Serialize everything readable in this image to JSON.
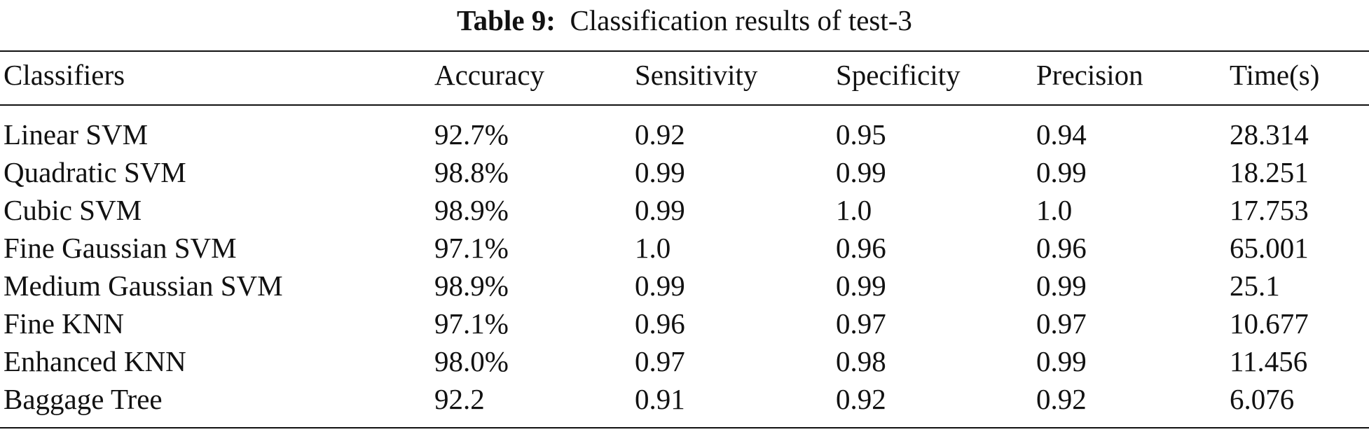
{
  "caption": {
    "label": "Table 9:",
    "text": "Classification results of test-3"
  },
  "table": {
    "headers": [
      "Classifiers",
      "Accuracy",
      "Sensitivity",
      "Specificity",
      "Precision",
      "Time(s)"
    ],
    "rows": [
      [
        "Linear SVM",
        "92.7%",
        "0.92",
        "0.95",
        "0.94",
        "28.314"
      ],
      [
        "Quadratic SVM",
        "98.8%",
        "0.99",
        "0.99",
        "0.99",
        "18.251"
      ],
      [
        "Cubic SVM",
        "98.9%",
        "0.99",
        "1.0",
        "1.0",
        "17.753"
      ],
      [
        "Fine Gaussian SVM",
        "97.1%",
        "1.0",
        "0.96",
        "0.96",
        "65.001"
      ],
      [
        "Medium Gaussian SVM",
        "98.9%",
        "0.99",
        "0.99",
        "0.99",
        "25.1"
      ],
      [
        "Fine KNN",
        "97.1%",
        "0.96",
        "0.97",
        "0.97",
        "10.677"
      ],
      [
        "Enhanced KNN",
        "98.0%",
        "0.97",
        "0.98",
        "0.99",
        "11.456"
      ],
      [
        "Baggage Tree",
        "92.2",
        "0.91",
        "0.92",
        "0.92",
        "6.076"
      ]
    ]
  }
}
